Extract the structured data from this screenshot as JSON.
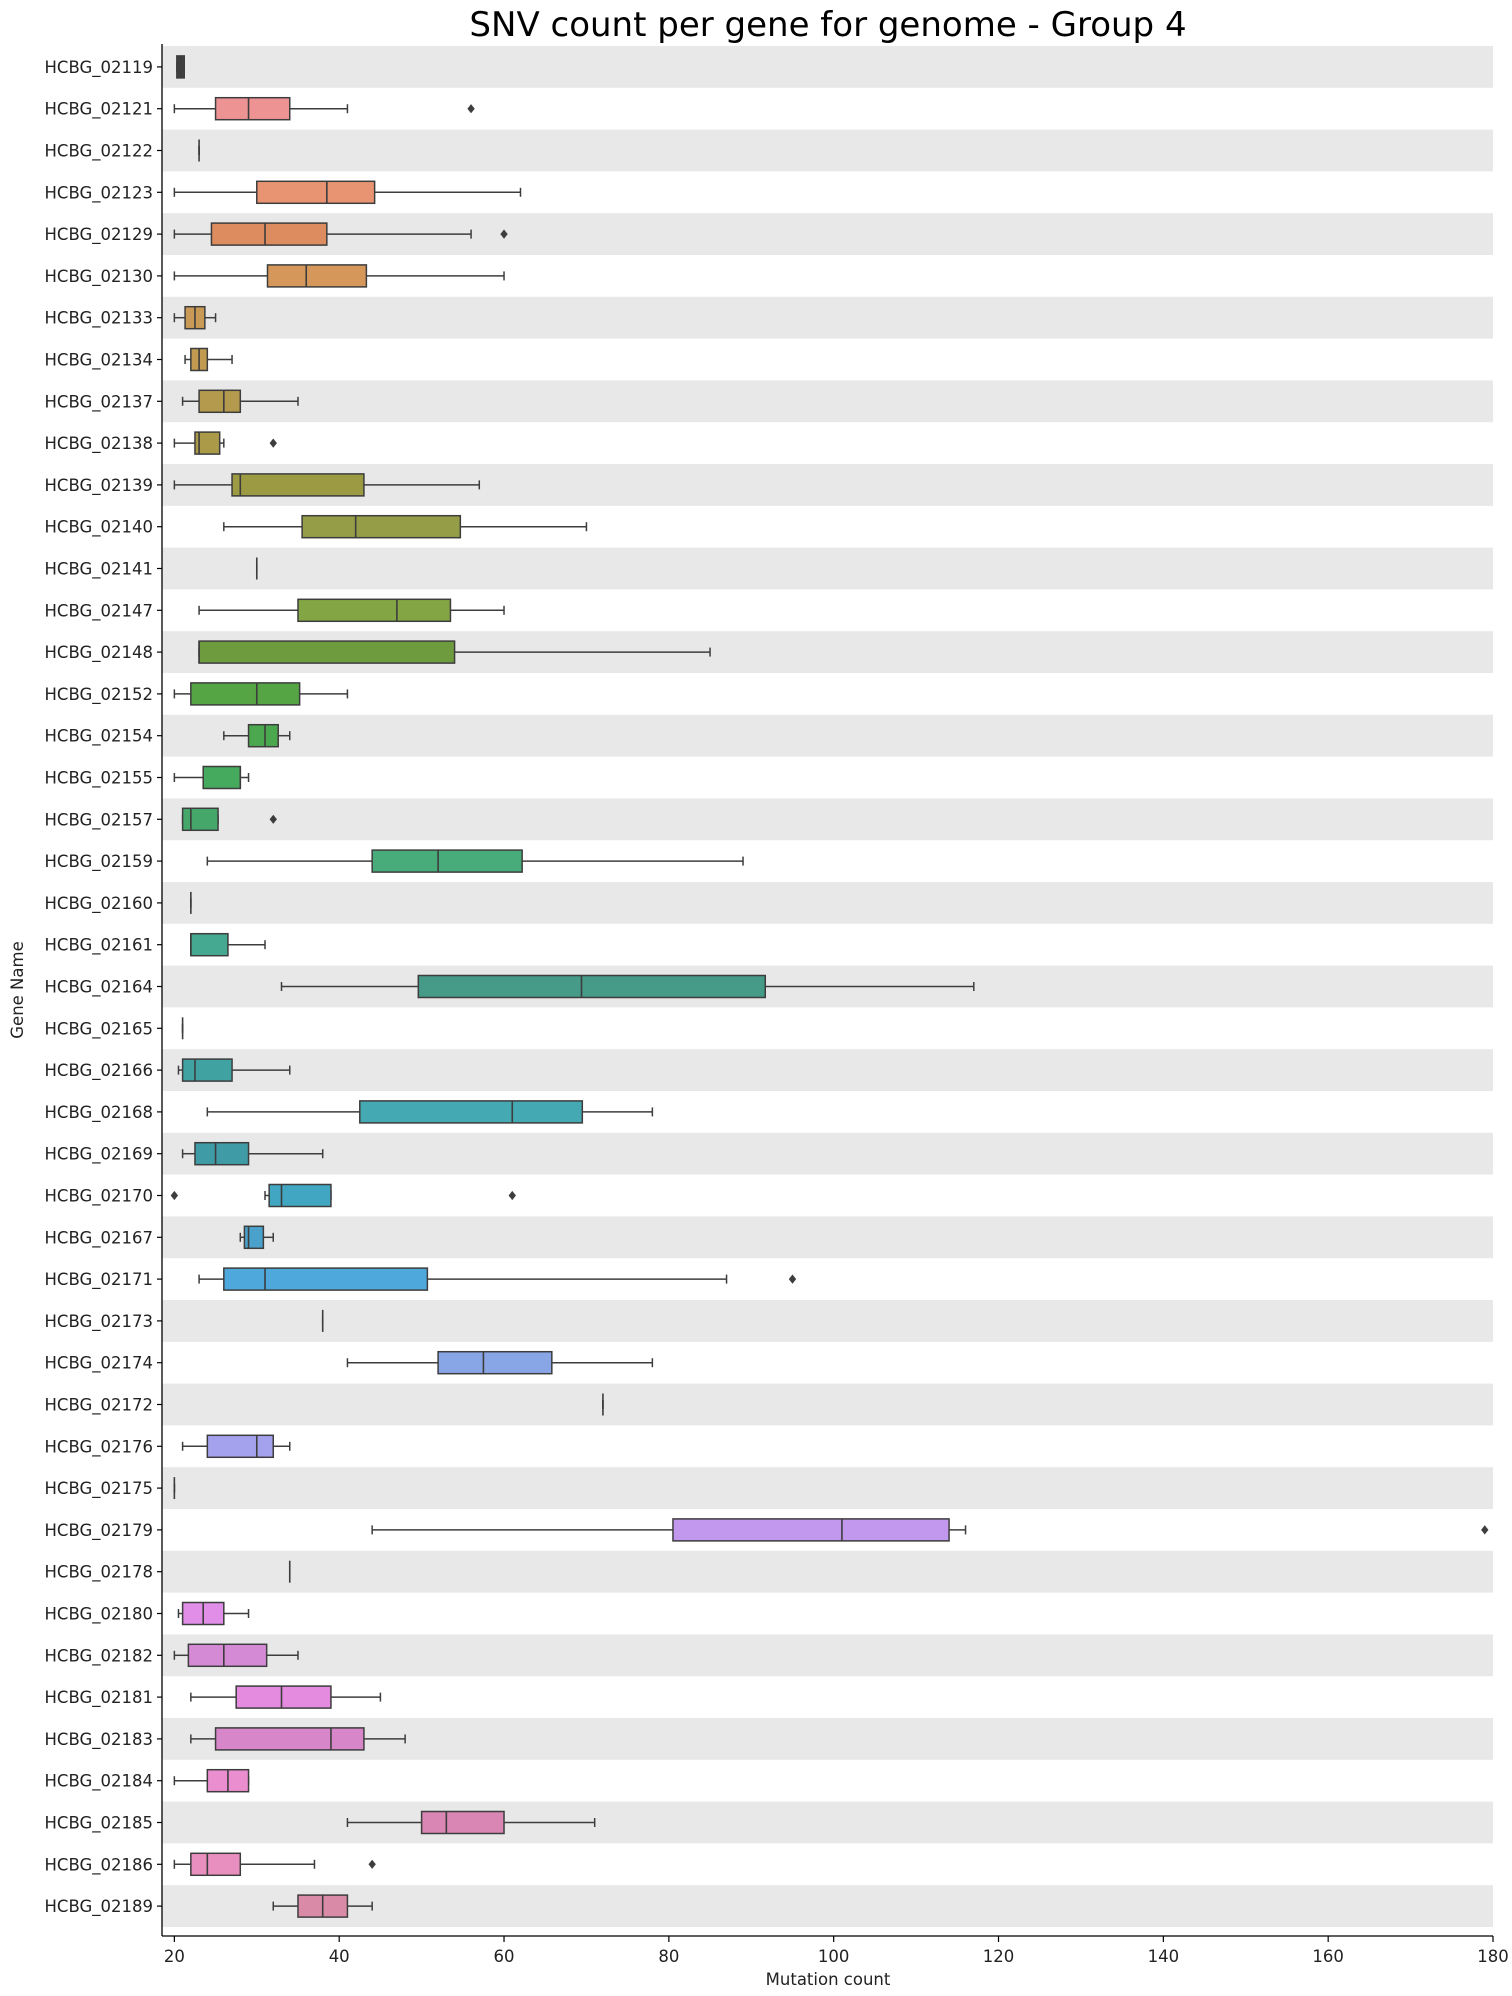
{
  "chart_data": {
    "type": "box",
    "orientation": "horizontal",
    "title": "SNV count per gene for genome - Group 4",
    "xlabel": "Mutation count",
    "ylabel": "Gene Name",
    "xlim": [
      18.5,
      180
    ],
    "xticks": [
      20,
      40,
      60,
      80,
      100,
      120,
      140,
      160,
      180
    ],
    "band_color": "#e8e8e8",
    "categories": [
      {
        "name": "HCBG_02119",
        "color": "#3f3f3f",
        "whislo": 20.3,
        "q1": 20.3,
        "med": 20.8,
        "q3": 21.2,
        "whishi": 21.2,
        "fliers": []
      },
      {
        "name": "HCBG_02121",
        "color": "#ee9393",
        "whislo": 20,
        "q1": 25,
        "med": 29,
        "q3": 34,
        "whishi": 41,
        "fliers": [
          56
        ]
      },
      {
        "name": "HCBG_02122",
        "color": "#ec9a8a",
        "whislo": 23,
        "q1": 23,
        "med": 23,
        "q3": 23,
        "whishi": 23,
        "fliers": []
      },
      {
        "name": "HCBG_02123",
        "color": "#e89472",
        "whislo": 20,
        "q1": 30,
        "med": 38.5,
        "q3": 44.3,
        "whishi": 62,
        "fliers": []
      },
      {
        "name": "HCBG_02129",
        "color": "#dc8c5e",
        "whislo": 20,
        "q1": 24.5,
        "med": 31,
        "q3": 38.5,
        "whishi": 56,
        "fliers": [
          60
        ]
      },
      {
        "name": "HCBG_02130",
        "color": "#d6975a",
        "whislo": 20,
        "q1": 31.3,
        "med": 36,
        "q3": 43.3,
        "whishi": 60,
        "fliers": []
      },
      {
        "name": "HCBG_02133",
        "color": "#c99a55",
        "whislo": 20,
        "q1": 21.3,
        "med": 22.5,
        "q3": 23.7,
        "whishi": 25,
        "fliers": []
      },
      {
        "name": "HCBG_02134",
        "color": "#c29a50",
        "whislo": 21.3,
        "q1": 22,
        "med": 23,
        "q3": 24,
        "whishi": 27,
        "fliers": []
      },
      {
        "name": "HCBG_02137",
        "color": "#b49a4c",
        "whislo": 21,
        "q1": 23,
        "med": 26,
        "q3": 28,
        "whishi": 35,
        "fliers": []
      },
      {
        "name": "HCBG_02138",
        "color": "#ab9a48",
        "whislo": 20,
        "q1": 22.5,
        "med": 23,
        "q3": 25.5,
        "whishi": 26,
        "fliers": [
          32
        ]
      },
      {
        "name": "HCBG_02139",
        "color": "#9d9a44",
        "whislo": 20,
        "q1": 27,
        "med": 28,
        "q3": 43,
        "whishi": 57,
        "fliers": []
      },
      {
        "name": "HCBG_02140",
        "color": "#959d46",
        "whislo": 26,
        "q1": 35.5,
        "med": 42,
        "q3": 54.7,
        "whishi": 70,
        "fliers": []
      },
      {
        "name": "HCBG_02141",
        "color": "#8c9e45",
        "whislo": 30,
        "q1": 30,
        "med": 30,
        "q3": 30,
        "whishi": 30,
        "fliers": []
      },
      {
        "name": "HCBG_02147",
        "color": "#84a544",
        "whislo": 23,
        "q1": 35,
        "med": 47,
        "q3": 53.5,
        "whishi": 60,
        "fliers": []
      },
      {
        "name": "HCBG_02148",
        "color": "#6f9b3f",
        "whislo": 23,
        "q1": 23,
        "med": 23,
        "q3": 54,
        "whishi": 85,
        "fliers": []
      },
      {
        "name": "HCBG_02152",
        "color": "#55a544",
        "whislo": 20,
        "q1": 22,
        "med": 30,
        "q3": 35.2,
        "whishi": 41,
        "fliers": []
      },
      {
        "name": "HCBG_02154",
        "color": "#4ca84f",
        "whislo": 26,
        "q1": 29,
        "med": 31,
        "q3": 32.6,
        "whishi": 34,
        "fliers": []
      },
      {
        "name": "HCBG_02155",
        "color": "#46aa5e",
        "whislo": 20,
        "q1": 23.5,
        "med": 28,
        "q3": 28,
        "whishi": 29,
        "fliers": []
      },
      {
        "name": "HCBG_02157",
        "color": "#45a86a",
        "whislo": 21,
        "q1": 21,
        "med": 22,
        "q3": 25.3,
        "whishi": 25.3,
        "fliers": [
          32
        ]
      },
      {
        "name": "HCBG_02159",
        "color": "#47ab7a",
        "whislo": 24,
        "q1": 44,
        "med": 52,
        "q3": 62.2,
        "whishi": 89,
        "fliers": []
      },
      {
        "name": "HCBG_02160",
        "color": "#47aa88",
        "whislo": 22,
        "q1": 22,
        "med": 22,
        "q3": 22,
        "whishi": 22,
        "fliers": []
      },
      {
        "name": "HCBG_02161",
        "color": "#45a992",
        "whislo": 22,
        "q1": 22,
        "med": 22,
        "q3": 26.5,
        "whishi": 31,
        "fliers": []
      },
      {
        "name": "HCBG_02164",
        "color": "#459a88",
        "whislo": 33,
        "q1": 49.6,
        "med": 69.4,
        "q3": 91.7,
        "whishi": 117,
        "fliers": []
      },
      {
        "name": "HCBG_02165",
        "color": "#45a59e",
        "whislo": 21,
        "q1": 21,
        "med": 21,
        "q3": 21,
        "whishi": 21,
        "fliers": []
      },
      {
        "name": "HCBG_02166",
        "color": "#40a3a1",
        "whislo": 20.5,
        "q1": 21,
        "med": 22.5,
        "q3": 27,
        "whishi": 34,
        "fliers": []
      },
      {
        "name": "HCBG_02168",
        "color": "#45a9b3",
        "whislo": 24,
        "q1": 42.5,
        "med": 61,
        "q3": 69.5,
        "whishi": 78,
        "fliers": []
      },
      {
        "name": "HCBG_02169",
        "color": "#3f9ca6",
        "whislo": 21,
        "q1": 22.5,
        "med": 25,
        "q3": 29,
        "whishi": 38,
        "fliers": []
      },
      {
        "name": "HCBG_02170",
        "color": "#41a6c2",
        "whislo": 31,
        "q1": 31.5,
        "med": 33,
        "q3": 39,
        "whishi": 39,
        "fliers": [
          20,
          61
        ]
      },
      {
        "name": "HCBG_02167",
        "color": "#4aa2cc",
        "whislo": 28,
        "q1": 28.5,
        "med": 29,
        "q3": 30.8,
        "whishi": 32,
        "fliers": []
      },
      {
        "name": "HCBG_02171",
        "color": "#4fa8dc",
        "whislo": 23,
        "q1": 26,
        "med": 31,
        "q3": 50.7,
        "whishi": 87,
        "fliers": [
          95
        ]
      },
      {
        "name": "HCBG_02173",
        "color": "#60a5de",
        "whislo": 38,
        "q1": 38,
        "med": 38,
        "q3": 38,
        "whishi": 38,
        "fliers": []
      },
      {
        "name": "HCBG_02174",
        "color": "#88a6e5",
        "whislo": 41,
        "q1": 52,
        "med": 57.5,
        "q3": 65.8,
        "whishi": 78,
        "fliers": []
      },
      {
        "name": "HCBG_02172",
        "color": "#93a4e8",
        "whislo": 72,
        "q1": 72,
        "med": 72,
        "q3": 72,
        "whishi": 72,
        "fliers": []
      },
      {
        "name": "HCBG_02176",
        "color": "#a4a2ec",
        "whislo": 21,
        "q1": 24,
        "med": 30,
        "q3": 32,
        "whishi": 34,
        "fliers": []
      },
      {
        "name": "HCBG_02175",
        "color": "#a99eec",
        "whislo": 20,
        "q1": 20,
        "med": 20,
        "q3": 20,
        "whishi": 20,
        "fliers": []
      },
      {
        "name": "HCBG_02179",
        "color": "#c297ee",
        "whislo": 44,
        "q1": 80.5,
        "med": 101,
        "q3": 114,
        "whishi": 116,
        "fliers": [
          179
        ]
      },
      {
        "name": "HCBG_02178",
        "color": "#cd93ec",
        "whislo": 34,
        "q1": 34,
        "med": 34,
        "q3": 34,
        "whishi": 34,
        "fliers": []
      },
      {
        "name": "HCBG_02180",
        "color": "#e08ee8",
        "whislo": 20.5,
        "q1": 21,
        "med": 23.5,
        "q3": 26,
        "whishi": 29,
        "fliers": []
      },
      {
        "name": "HCBG_02182",
        "color": "#d58ad6",
        "whislo": 20,
        "q1": 21.7,
        "med": 26,
        "q3": 31.2,
        "whishi": 35,
        "fliers": []
      },
      {
        "name": "HCBG_02181",
        "color": "#e48be0",
        "whislo": 22,
        "q1": 27.5,
        "med": 33,
        "q3": 39,
        "whishi": 45,
        "fliers": []
      },
      {
        "name": "HCBG_02183",
        "color": "#d786c9",
        "whislo": 22,
        "q1": 25,
        "med": 39,
        "q3": 43,
        "whishi": 48,
        "fliers": []
      },
      {
        "name": "HCBG_02184",
        "color": "#ea8ecf",
        "whislo": 20,
        "q1": 24,
        "med": 26.5,
        "q3": 29,
        "whishi": 29,
        "fliers": []
      },
      {
        "name": "HCBG_02185",
        "color": "#d986b5",
        "whislo": 41,
        "q1": 50,
        "med": 53,
        "q3": 60,
        "whishi": 71,
        "fliers": []
      },
      {
        "name": "HCBG_02186",
        "color": "#e98fbf",
        "whislo": 20,
        "q1": 22,
        "med": 24,
        "q3": 28,
        "whishi": 37,
        "fliers": [
          44
        ]
      },
      {
        "name": "HCBG_02189",
        "color": "#d98aa7",
        "whislo": 32,
        "q1": 35,
        "med": 38,
        "q3": 41,
        "whishi": 44,
        "fliers": []
      }
    ]
  }
}
